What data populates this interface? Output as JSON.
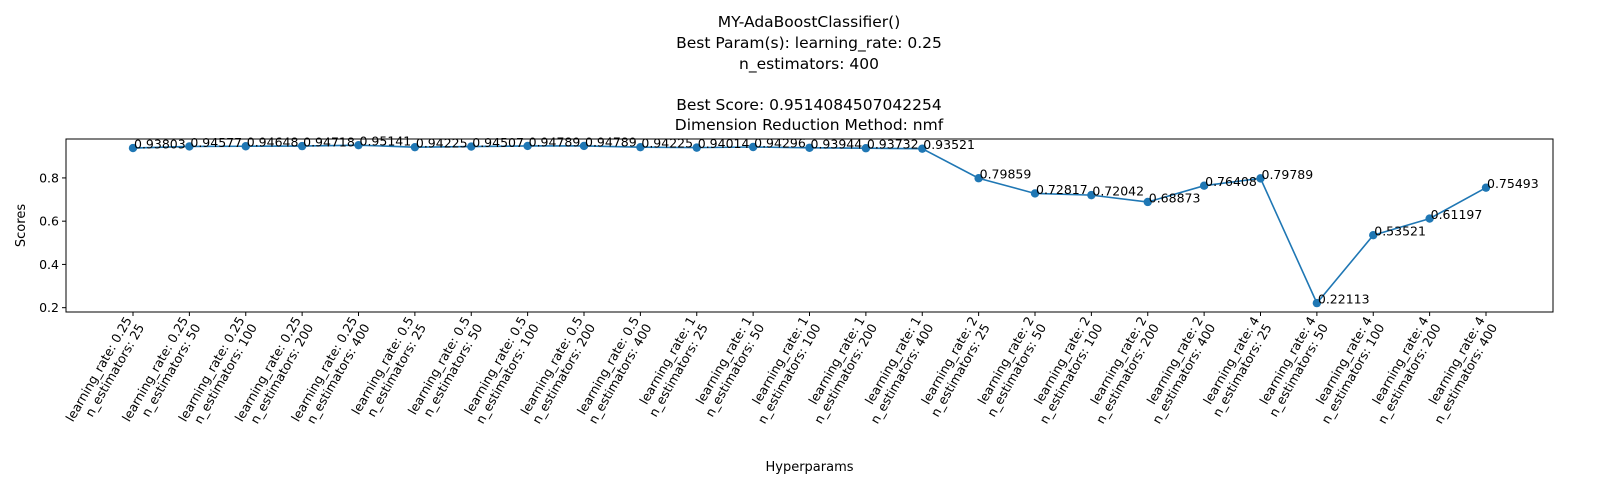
{
  "chart_data": {
    "type": "line",
    "title_lines": [
      "MY-AdaBoostClassifier()",
      "Best Param(s): learning_rate: 0.25",
      "n_estimators: 400",
      "",
      "Best Score: 0.9514084507042254",
      "Dimension Reduction Method: nmf"
    ],
    "xlabel": "Hyperparams",
    "ylabel": "Scores",
    "ylim": [
      0.18,
      0.98
    ],
    "yticks": [
      "0.2",
      "0.4",
      "0.6",
      "0.8"
    ],
    "grid": false,
    "color": "#1f77b4",
    "categories": [
      [
        "learning_rate: 0.25",
        "n_estimators: 25"
      ],
      [
        "learning_rate: 0.25",
        "n_estimators: 50"
      ],
      [
        "learning_rate: 0.25",
        "n_estimators: 100"
      ],
      [
        "learning_rate: 0.25",
        "n_estimators: 200"
      ],
      [
        "learning_rate: 0.25",
        "n_estimators: 400"
      ],
      [
        "learning_rate: 0.5",
        "n_estimators: 25"
      ],
      [
        "learning_rate: 0.5",
        "n_estimators: 50"
      ],
      [
        "learning_rate: 0.5",
        "n_estimators: 100"
      ],
      [
        "learning_rate: 0.5",
        "n_estimators: 200"
      ],
      [
        "learning_rate: 0.5",
        "n_estimators: 400"
      ],
      [
        "learning_rate: 1",
        "n_estimators: 25"
      ],
      [
        "learning_rate: 1",
        "n_estimators: 50"
      ],
      [
        "learning_rate: 1",
        "n_estimators: 100"
      ],
      [
        "learning_rate: 1",
        "n_estimators: 200"
      ],
      [
        "learning_rate: 1",
        "n_estimators: 400"
      ],
      [
        "learning_rate: 2",
        "n_estimators: 25"
      ],
      [
        "learning_rate: 2",
        "n_estimators: 50"
      ],
      [
        "learning_rate: 2",
        "n_estimators: 100"
      ],
      [
        "learning_rate: 2",
        "n_estimators: 200"
      ],
      [
        "learning_rate: 2",
        "n_estimators: 400"
      ],
      [
        "learning_rate: 4",
        "n_estimators: 25"
      ],
      [
        "learning_rate: 4",
        "n_estimators: 50"
      ],
      [
        "learning_rate: 4",
        "n_estimators: 100"
      ],
      [
        "learning_rate: 4",
        "n_estimators: 200"
      ],
      [
        "learning_rate: 4",
        "n_estimators: 400"
      ]
    ],
    "values": [
      0.93803,
      0.94577,
      0.94648,
      0.94718,
      0.95141,
      0.94225,
      0.94507,
      0.94789,
      0.94789,
      0.94225,
      0.94014,
      0.94296,
      0.93944,
      0.93732,
      0.93521,
      0.79859,
      0.72817,
      0.72042,
      0.68873,
      0.76408,
      0.79789,
      0.22113,
      0.53521,
      0.61197,
      0.75493
    ],
    "data_labels": [
      "0.93803",
      "0.94577",
      "0.94648",
      "0.94718",
      "0.95141",
      "0.94225",
      "0.94507",
      "0.94789",
      "0.94789",
      "0.94225",
      "0.94014",
      "0.94296",
      "0.93944",
      "0.93732",
      "0.93521",
      "0.79859",
      "0.72817",
      "0.72042",
      "0.68873",
      "0.76408",
      "0.79789",
      "0.22113",
      "0.53521",
      "0.61197",
      "0.75493"
    ]
  }
}
